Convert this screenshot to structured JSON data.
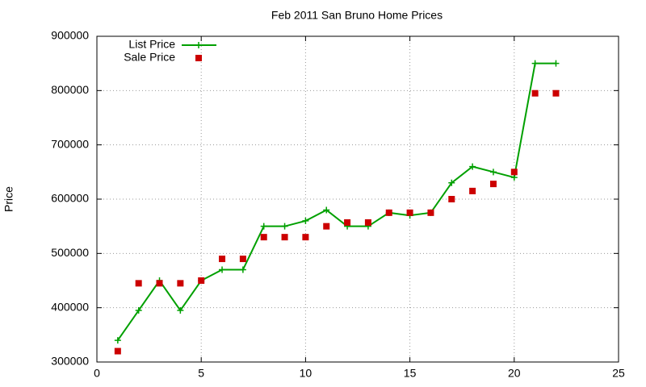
{
  "chart_data": {
    "type": "line",
    "title": "Feb 2011 San Bruno Home Prices",
    "y_label": "Price",
    "x": [
      1,
      2,
      3,
      4,
      5,
      6,
      7,
      8,
      9,
      10,
      11,
      12,
      13,
      14,
      15,
      16,
      17,
      18,
      19,
      20,
      21,
      22
    ],
    "series": [
      {
        "name": "List Price",
        "color": "#00a000",
        "style": "linespoints",
        "values": [
          340000,
          395000,
          450000,
          395000,
          450000,
          470000,
          470000,
          550000,
          550000,
          560000,
          580000,
          550000,
          550000,
          575000,
          570000,
          575000,
          630000,
          660000,
          650000,
          640000,
          850000,
          850000
        ]
      },
      {
        "name": "Sale Price",
        "color": "#cc0000",
        "style": "points",
        "values": [
          320000,
          445000,
          445000,
          445000,
          450000,
          490000,
          490000,
          530000,
          530000,
          530000,
          550000,
          557000,
          557000,
          575000,
          575000,
          575000,
          600000,
          615000,
          628000,
          650000,
          795000,
          795000
        ]
      }
    ],
    "xlim": [
      0,
      25
    ],
    "xticks": [
      0,
      5,
      10,
      15,
      20,
      25
    ],
    "ylim": [
      300000,
      900000
    ],
    "yticks": [
      300000,
      400000,
      500000,
      600000,
      700000,
      800000,
      900000
    ],
    "grid": true,
    "legend": "top-left"
  }
}
